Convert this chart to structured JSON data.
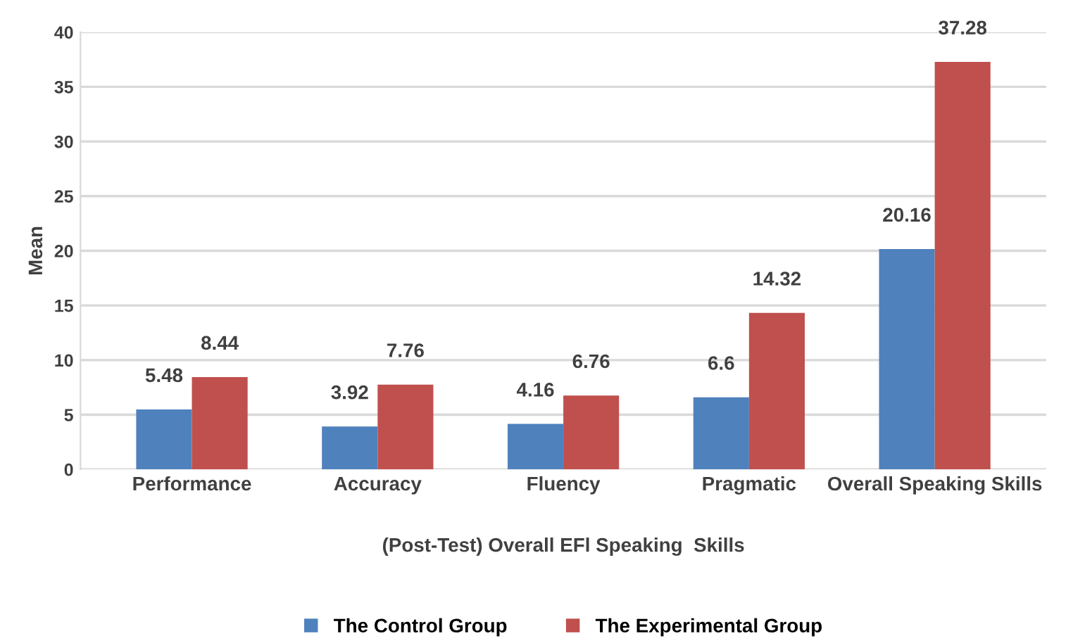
{
  "chart_data": {
    "type": "bar",
    "categories": [
      "Performance",
      "Accuracy",
      "Fluency",
      "Pragmatic",
      "Overall Speaking Skills"
    ],
    "series": [
      {
        "name": "The Control Group",
        "color": "#4f81bd",
        "values": [
          5.48,
          3.92,
          4.16,
          6.6,
          20.16
        ]
      },
      {
        "name": "The Experimental Group",
        "color": "#c0504d",
        "values": [
          8.44,
          7.76,
          6.76,
          14.32,
          37.28
        ]
      }
    ],
    "xlabel": "(Post-Test) Overall EFl Speaking  Skills",
    "ylabel": "Mean",
    "ylim": [
      0,
      40
    ],
    "yticks": [
      0,
      5,
      10,
      15,
      20,
      25,
      30,
      35,
      40
    ],
    "grid": "y",
    "legend": "bottom",
    "data_labels": true
  }
}
